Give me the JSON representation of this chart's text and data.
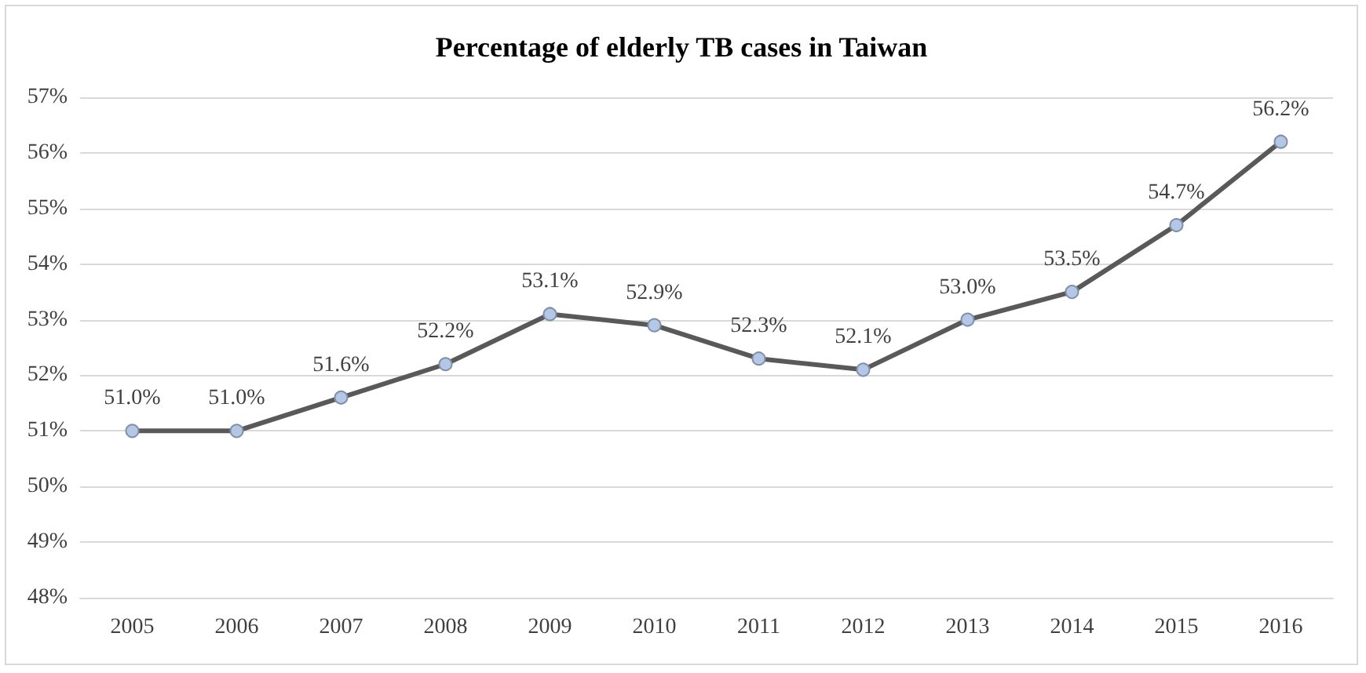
{
  "chart_data": {
    "type": "line",
    "title": "Percentage of elderly TB cases in Taiwan",
    "categories": [
      "2005",
      "2006",
      "2007",
      "2008",
      "2009",
      "2010",
      "2011",
      "2012",
      "2013",
      "2014",
      "2015",
      "2016"
    ],
    "series": [
      {
        "color": "#595959",
        "values": [
          51.0,
          51.0,
          51.6,
          52.2,
          53.1,
          52.9,
          52.3,
          52.1,
          53.0,
          53.5,
          54.7,
          56.2
        ],
        "value_labels": [
          "51.0%",
          "51.0%",
          "51.6%",
          "52.2%",
          "53.1%",
          "52.9%",
          "52.3%",
          "52.1%",
          "53.0%",
          "53.5%",
          "54.7%",
          "56.2%"
        ]
      }
    ],
    "ylim": [
      48,
      57
    ],
    "yticks": [
      {
        "value": 48,
        "label": "48%"
      },
      {
        "value": 49,
        "label": "49%"
      },
      {
        "value": 50,
        "label": "50%"
      },
      {
        "value": 51,
        "label": "51%"
      },
      {
        "value": 52,
        "label": "52%"
      },
      {
        "value": 53,
        "label": "53%"
      },
      {
        "value": 54,
        "label": "54%"
      },
      {
        "value": 55,
        "label": "55%"
      },
      {
        "value": 56,
        "label": "56%"
      },
      {
        "value": 57,
        "label": "57%"
      }
    ],
    "grid": "y",
    "marker": "circle",
    "line_style": "solid"
  }
}
